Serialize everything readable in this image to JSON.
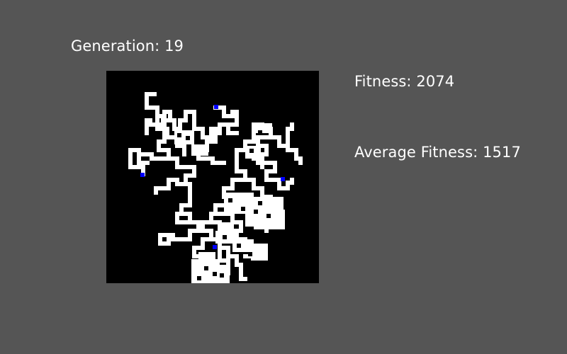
{
  "hud": {
    "generation_text": "Generation: 19",
    "fitness_text": "Fitness: 2074",
    "average_fitness_text": "Average Fitness: 1517"
  },
  "colors": {
    "background": "#555555",
    "panel": "#000000",
    "path": "#ffffff",
    "agent": "#0000ff"
  },
  "simulation": {
    "agents_visible": 4
  }
}
